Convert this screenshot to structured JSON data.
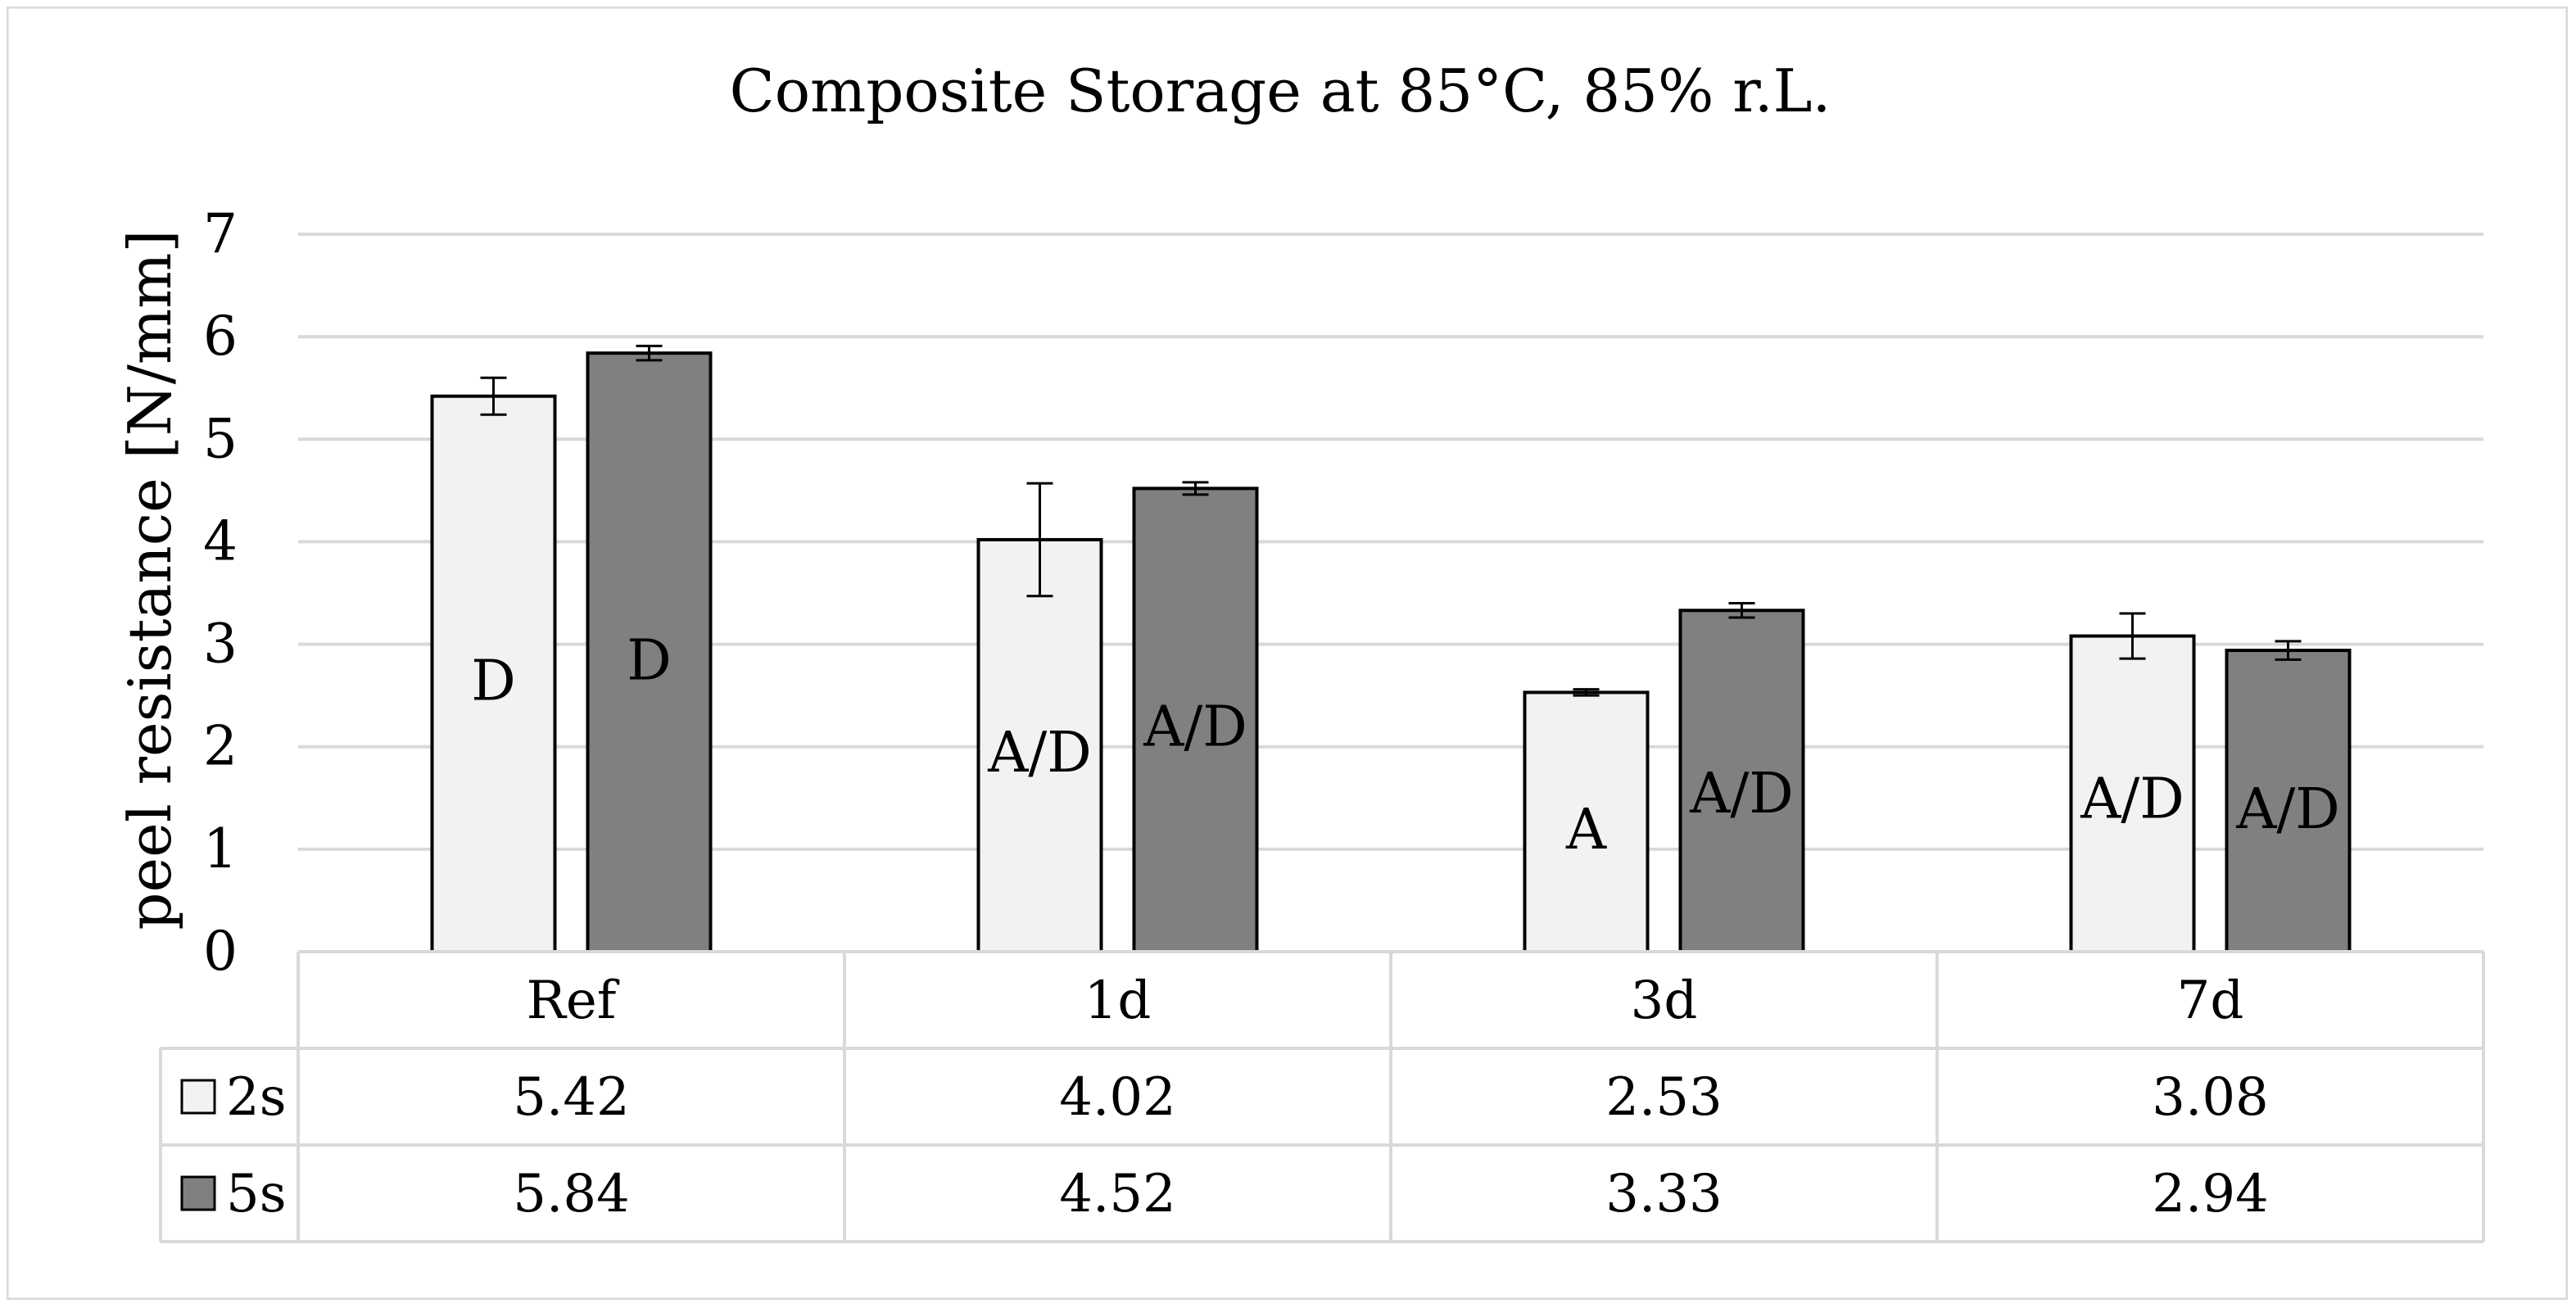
{
  "chart_data": {
    "type": "bar",
    "title": "Composite Storage at 85°C, 85% r.L.",
    "xlabel": "",
    "ylabel": "peel resistance [N/mm]",
    "ylim": [
      0,
      7
    ],
    "yticks": [
      "0",
      "1",
      "2",
      "3",
      "4",
      "5",
      "6",
      "7"
    ],
    "grid": true,
    "legend": "data-table-left",
    "categories": [
      "Ref",
      "1d",
      "3d",
      "7d"
    ],
    "series": [
      {
        "name": "2s",
        "color": "#f2f2f2",
        "values": [
          5.42,
          4.02,
          2.53,
          3.08
        ],
        "value_labels": [
          "5.42",
          "4.02",
          "2.53",
          "3.08"
        ],
        "error": [
          0.18,
          0.55,
          0.03,
          0.22
        ],
        "failure_modes": [
          "D",
          "A/D",
          "A",
          "A/D"
        ],
        "failure_label_y": [
          2.65,
          1.95,
          1.2,
          1.5
        ]
      },
      {
        "name": "5s",
        "color": "#808080",
        "values": [
          5.84,
          4.52,
          3.33,
          2.94
        ],
        "value_labels": [
          "5.84",
          "4.52",
          "3.33",
          "2.94"
        ],
        "error": [
          0.07,
          0.06,
          0.07,
          0.09
        ],
        "failure_modes": [
          "D",
          "A/D",
          "A/D",
          "A/D"
        ],
        "failure_label_y": [
          2.85,
          2.2,
          1.55,
          1.4
        ]
      }
    ]
  }
}
